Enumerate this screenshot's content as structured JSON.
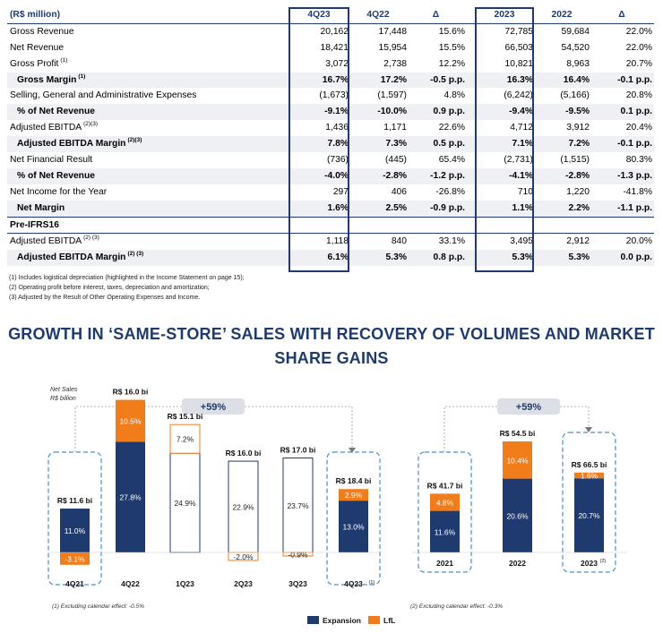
{
  "table": {
    "header": {
      "label": "(R$ million)",
      "cols": [
        "4Q23",
        "4Q22",
        "Δ",
        "2023",
        "2022",
        "Δ"
      ]
    },
    "rows": [
      {
        "label": "Gross Revenue",
        "sup": "",
        "vals": [
          "20,162",
          "17,448",
          "15.6%",
          "72,785",
          "59,684",
          "22.0%"
        ]
      },
      {
        "label": "Net Revenue",
        "sup": "",
        "vals": [
          "18,421",
          "15,954",
          "15.5%",
          "66,503",
          "54,520",
          "22.0%"
        ]
      },
      {
        "label": "Gross Profit",
        "sup": "(1)",
        "vals": [
          "3,072",
          "2,738",
          "12.2%",
          "10,821",
          "8,963",
          "20.7%"
        ]
      },
      {
        "label": "Gross Margin",
        "sup": "(1)",
        "vals": [
          "16.7%",
          "17.2%",
          "-0.5 p.p.",
          "16.3%",
          "16.4%",
          "-0.1 p.p."
        ]
      },
      {
        "label": "Selling, General and Administrative Expenses",
        "sup": "",
        "vals": [
          "(1,673)",
          "(1,597)",
          "4.8%",
          "(6,242)",
          "(5,166)",
          "20.8%"
        ]
      },
      {
        "label": "% of Net Revenue",
        "sup": "",
        "vals": [
          "-9.1%",
          "-10.0%",
          "0.9 p.p.",
          "-9.4%",
          "-9.5%",
          "0.1 p.p."
        ]
      },
      {
        "label": "Adjusted EBITDA",
        "sup": "(2)(3)",
        "vals": [
          "1,436",
          "1,171",
          "22.6%",
          "4,712",
          "3,912",
          "20.4%"
        ]
      },
      {
        "label": "Adjusted EBITDA Margin",
        "sup": "(2)(3)",
        "vals": [
          "7.8%",
          "7.3%",
          "0.5 p.p.",
          "7.1%",
          "7.2%",
          "-0.1 p.p."
        ]
      },
      {
        "label": "Net Financial Result",
        "sup": "",
        "vals": [
          "(736)",
          "(445)",
          "65.4%",
          "(2,731)",
          "(1,515)",
          "80.3%"
        ]
      },
      {
        "label": "% of Net Revenue",
        "sup": "",
        "vals": [
          "-4.0%",
          "-2.8%",
          "-1.2 p.p.",
          "-4.1%",
          "-2.8%",
          "-1.3 p.p."
        ]
      },
      {
        "label": "Net Income  for the Year",
        "sup": "",
        "vals": [
          "297",
          "406",
          "-26.8%",
          "710",
          "1,220",
          "-41.8%"
        ]
      },
      {
        "label": "Net Margin",
        "sup": "",
        "vals": [
          "1.6%",
          "2.5%",
          "-0.9 p.p.",
          "1.1%",
          "2.2%",
          "-1.1 p.p."
        ]
      },
      {
        "label": "Pre-IFRS16",
        "sup": "",
        "vals": [
          "",
          "",
          "",
          "",
          "",
          ""
        ]
      },
      {
        "label": "Adjusted EBITDA",
        "sup": "(2) (3)",
        "vals": [
          "1,118",
          "840",
          "33.1%",
          "3,495",
          "2,912",
          "20.0%"
        ]
      },
      {
        "label": "Adjusted EBITDA Margin",
        "sup": "(2) (3)",
        "vals": [
          "6.1%",
          "5.3%",
          "0.8 p.p.",
          "5.3%",
          "5.3%",
          "0.0 p.p."
        ]
      }
    ]
  },
  "notes": [
    "(1) Includes logistical depreciation (highlighted in the Income Statement on page 15);",
    "(2) Operating profit before interest, taxes, depreciation and amortization;",
    "(3) Adjusted by the Result of Other Operating Expenses and Income."
  ],
  "headline": [
    "GROWTH IN ‘SAME-STORE’ SALES WITH RECOVERY OF VOLUMES AND MARKET",
    "SHARE GAINS"
  ],
  "colors": {
    "expansion": "#1f3a6e",
    "lfl": "#f07c1a",
    "navy": "#1f3a6e",
    "dashed": "#4a90c8",
    "pill": "#dcdfe6"
  },
  "chart_data": [
    {
      "type": "bar",
      "subtitle": "Net Sales",
      "unit_label": "R$ billion",
      "growth_label": "+59%",
      "footnote": "(1)  Excluding calendar effect: -0.5%",
      "categories": [
        "4Q21",
        "4Q22",
        "1Q23",
        "2Q23",
        "3Q23",
        "4Q23"
      ],
      "category_sups": [
        "",
        "",
        "",
        "",
        "",
        "(1)"
      ],
      "totals": [
        "R$ 11.6 bi",
        "R$ 16.0 bi",
        "R$ 15.1 bi",
        "R$ 16.0 bi",
        "R$ 17.0 bi",
        "R$ 18.4 bi"
      ],
      "series": [
        {
          "name": "Expansion",
          "values": [
            11.0,
            27.8,
            24.9,
            22.9,
            23.7,
            13.0
          ],
          "labels": [
            "11.0%",
            "27.8%",
            "24.9%",
            "22.9%",
            "23.7%",
            "13.0%"
          ]
        },
        {
          "name": "LfL",
          "values": [
            -3.1,
            10.5,
            7.2,
            -2.0,
            -0.9,
            2.9
          ],
          "labels": [
            "-3.1%",
            "10.5%",
            "7.2%",
            "-2.0%",
            "-0.9%",
            "2.9%"
          ]
        }
      ],
      "outlined": [
        false,
        false,
        true,
        true,
        true,
        false
      ],
      "highlighted": [
        "4Q21",
        "4Q23"
      ]
    },
    {
      "type": "bar",
      "growth_label": "+59%",
      "footnote": "(2)  Excluding calendar effect: -0.3%",
      "categories": [
        "2021",
        "2022",
        "2023"
      ],
      "category_sups": [
        "",
        "",
        "(2)"
      ],
      "totals": [
        "R$ 41.7 bi",
        "R$ 54.5 bi",
        "R$ 66.5 bi"
      ],
      "series": [
        {
          "name": "Expansion",
          "values": [
            11.6,
            20.6,
            20.7
          ],
          "labels": [
            "11.6%",
            "20.6%",
            "20.7%"
          ]
        },
        {
          "name": "LfL",
          "values": [
            4.8,
            10.4,
            1.6
          ],
          "labels": [
            "4.8%",
            "10.4%",
            "1.6%"
          ]
        }
      ],
      "highlighted": [
        "2021",
        "2023"
      ]
    }
  ],
  "legend": [
    {
      "name": "Expansion"
    },
    {
      "name": "LfL"
    }
  ]
}
